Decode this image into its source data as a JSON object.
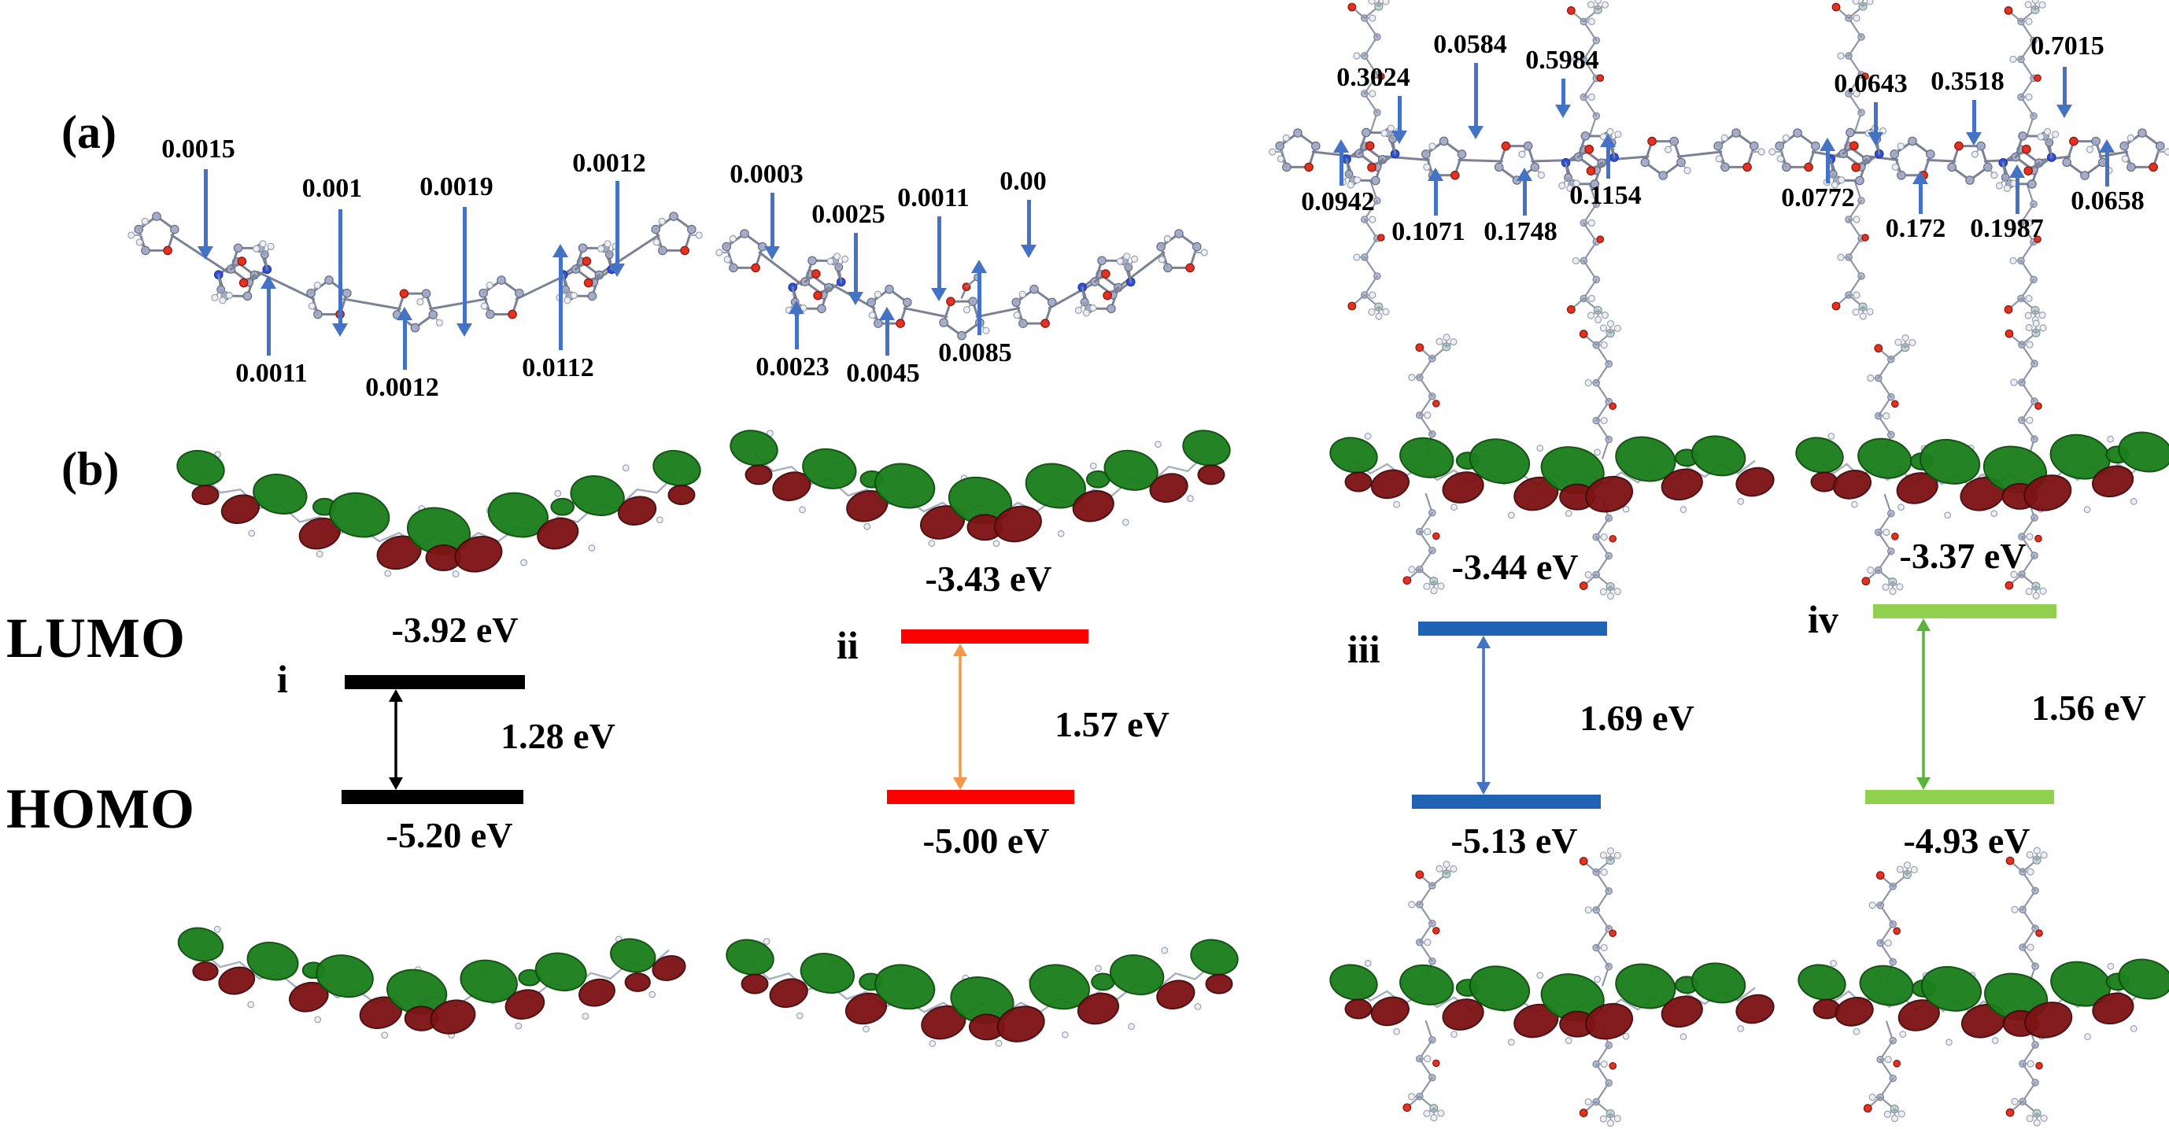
{
  "figure": {
    "section_a_label": "(a)",
    "section_b_label": "(b)",
    "lumo_row_label": "LUMO",
    "homo_row_label": "HOMO"
  },
  "colors": {
    "annotation_arrow": "#4472C4",
    "orbital_positive_lobe": "#1C7F1D",
    "orbital_negative_lobe": "#7D1315",
    "diagram_i_bar": "#000000",
    "diagram_ii_bar": "#FF0000",
    "diagram_iii_bar": "#1F63B5",
    "diagram_iv_bar": "#92D050"
  },
  "molecules": [
    {
      "id": "i",
      "top": [
        "0.0015",
        "0.001",
        "0.0019",
        "0.0012"
      ],
      "bottom": [
        "0.0011",
        "0.0012",
        "0.0112"
      ]
    },
    {
      "id": "ii",
      "top": [
        "0.0003",
        "0.0025",
        "0.0011",
        "0.00"
      ],
      "bottom": [
        "0.0023",
        "0.0045",
        "0.0085"
      ]
    },
    {
      "id": "iii",
      "top": [
        "0.3024",
        "0.0584",
        "0.5984"
      ],
      "bottom": [
        "0.0942",
        "0.1071",
        "0.1748",
        "0.1154"
      ]
    },
    {
      "id": "iv",
      "top": [
        "0.0643",
        "0.3518",
        "0.7015"
      ],
      "bottom": [
        "0.0772",
        "0.172",
        "0.1987",
        "0.0658"
      ]
    }
  ],
  "diagrams": [
    {
      "numeral": "i",
      "lumo": "-3.92 eV",
      "gap": "1.28 eV",
      "homo": "-5.20 eV",
      "bar_color": "#000000",
      "arrow_color": "#000000"
    },
    {
      "numeral": "ii",
      "lumo": "-3.43 eV",
      "gap": "1.57 eV",
      "homo": "-5.00 eV",
      "bar_color": "#FF0000",
      "arrow_color": "#F79646"
    },
    {
      "numeral": "iii",
      "lumo": "-3.44 eV",
      "gap": "1.69 eV",
      "homo": "-5.13 eV",
      "bar_color": "#1F63B5",
      "arrow_color": "#4472C4"
    },
    {
      "numeral": "iv",
      "lumo": "-3.37 eV",
      "gap": "1.56 eV",
      "homo": "-4.93 eV",
      "bar_color": "#92D050",
      "arrow_color": "#5CB33A"
    }
  ]
}
